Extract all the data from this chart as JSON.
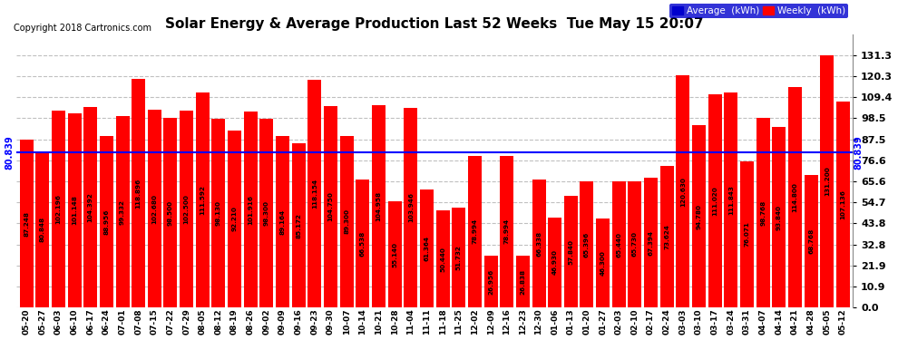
{
  "title": "Solar Energy & Average Production Last 52 Weeks  Tue May 15 20:07",
  "copyright": "Copyright 2018 Cartronics.com",
  "average_value": 80.839,
  "bar_color": "#ff0000",
  "avg_line_color": "#0000ff",
  "background_color": "#ffffff",
  "plot_bg_color": "#ffffff",
  "grid_color": "#c0c0c0",
  "yticks": [
    0.0,
    10.9,
    21.9,
    32.8,
    43.8,
    54.7,
    65.6,
    76.6,
    87.5,
    98.5,
    109.4,
    120.3,
    131.3
  ],
  "categories": [
    "05-20",
    "05-27",
    "06-03",
    "06-10",
    "06-17",
    "06-24",
    "07-01",
    "07-08",
    "07-15",
    "07-22",
    "07-29",
    "08-05",
    "08-12",
    "08-19",
    "08-26",
    "09-02",
    "09-09",
    "09-16",
    "09-23",
    "09-30",
    "10-07",
    "10-14",
    "10-21",
    "10-28",
    "11-04",
    "11-11",
    "11-18",
    "11-25",
    "12-02",
    "12-09",
    "12-16",
    "12-23",
    "12-30",
    "01-06",
    "01-13",
    "01-20",
    "01-27",
    "02-03",
    "02-10",
    "02-17",
    "02-24",
    "03-03",
    "03-10",
    "03-17",
    "03-24",
    "03-31",
    "04-07",
    "04-14",
    "04-21",
    "04-28",
    "05-05",
    "05-12"
  ],
  "values": [
    87.248,
    80.848,
    102.196,
    101.148,
    104.392,
    88.956,
    99.332,
    118.896,
    102.68,
    98.5,
    102.5,
    111.592,
    98.13,
    92.21,
    101.916,
    98.3,
    89.164,
    85.172,
    118.154,
    104.75,
    89.3,
    66.538,
    104.958,
    55.14,
    103.946,
    61.364,
    50.44,
    51.732,
    78.994,
    26.956,
    78.994,
    26.838,
    66.338,
    46.93,
    57.84,
    65.396,
    46.3,
    65.44,
    65.73,
    67.394,
    73.624,
    120.63,
    94.78,
    111.02,
    111.843,
    76.071,
    98.768,
    93.84,
    114.8,
    68.768,
    131.2,
    107.136
  ],
  "value_labels": [
    "87.248",
    "80.848",
    "102.196",
    "101.148",
    "104.392",
    "88.956",
    "99.332",
    "118.896",
    "102.680",
    "98.500",
    "102.500",
    "111.592",
    "98.130",
    "92.210",
    "101.916",
    "98.300",
    "89.164",
    "85.172",
    "118.154",
    "104.750",
    "89.300",
    "66.538",
    "104.958",
    "55.140",
    "103.946",
    "61.364",
    "50.440",
    "51.732",
    "78.994",
    "26.956",
    "78.994",
    "26.838",
    "66.338",
    "46.930",
    "57.840",
    "65.396",
    "46.300",
    "65.440",
    "65.730",
    "67.394",
    "73.624",
    "120.630",
    "94.780",
    "111.020",
    "111.843",
    "76.071",
    "98.768",
    "93.840",
    "114.800",
    "68.768",
    "131.200",
    "107.136"
  ],
  "legend_avg_color": "#0000cd",
  "legend_weekly_color": "#ff0000"
}
